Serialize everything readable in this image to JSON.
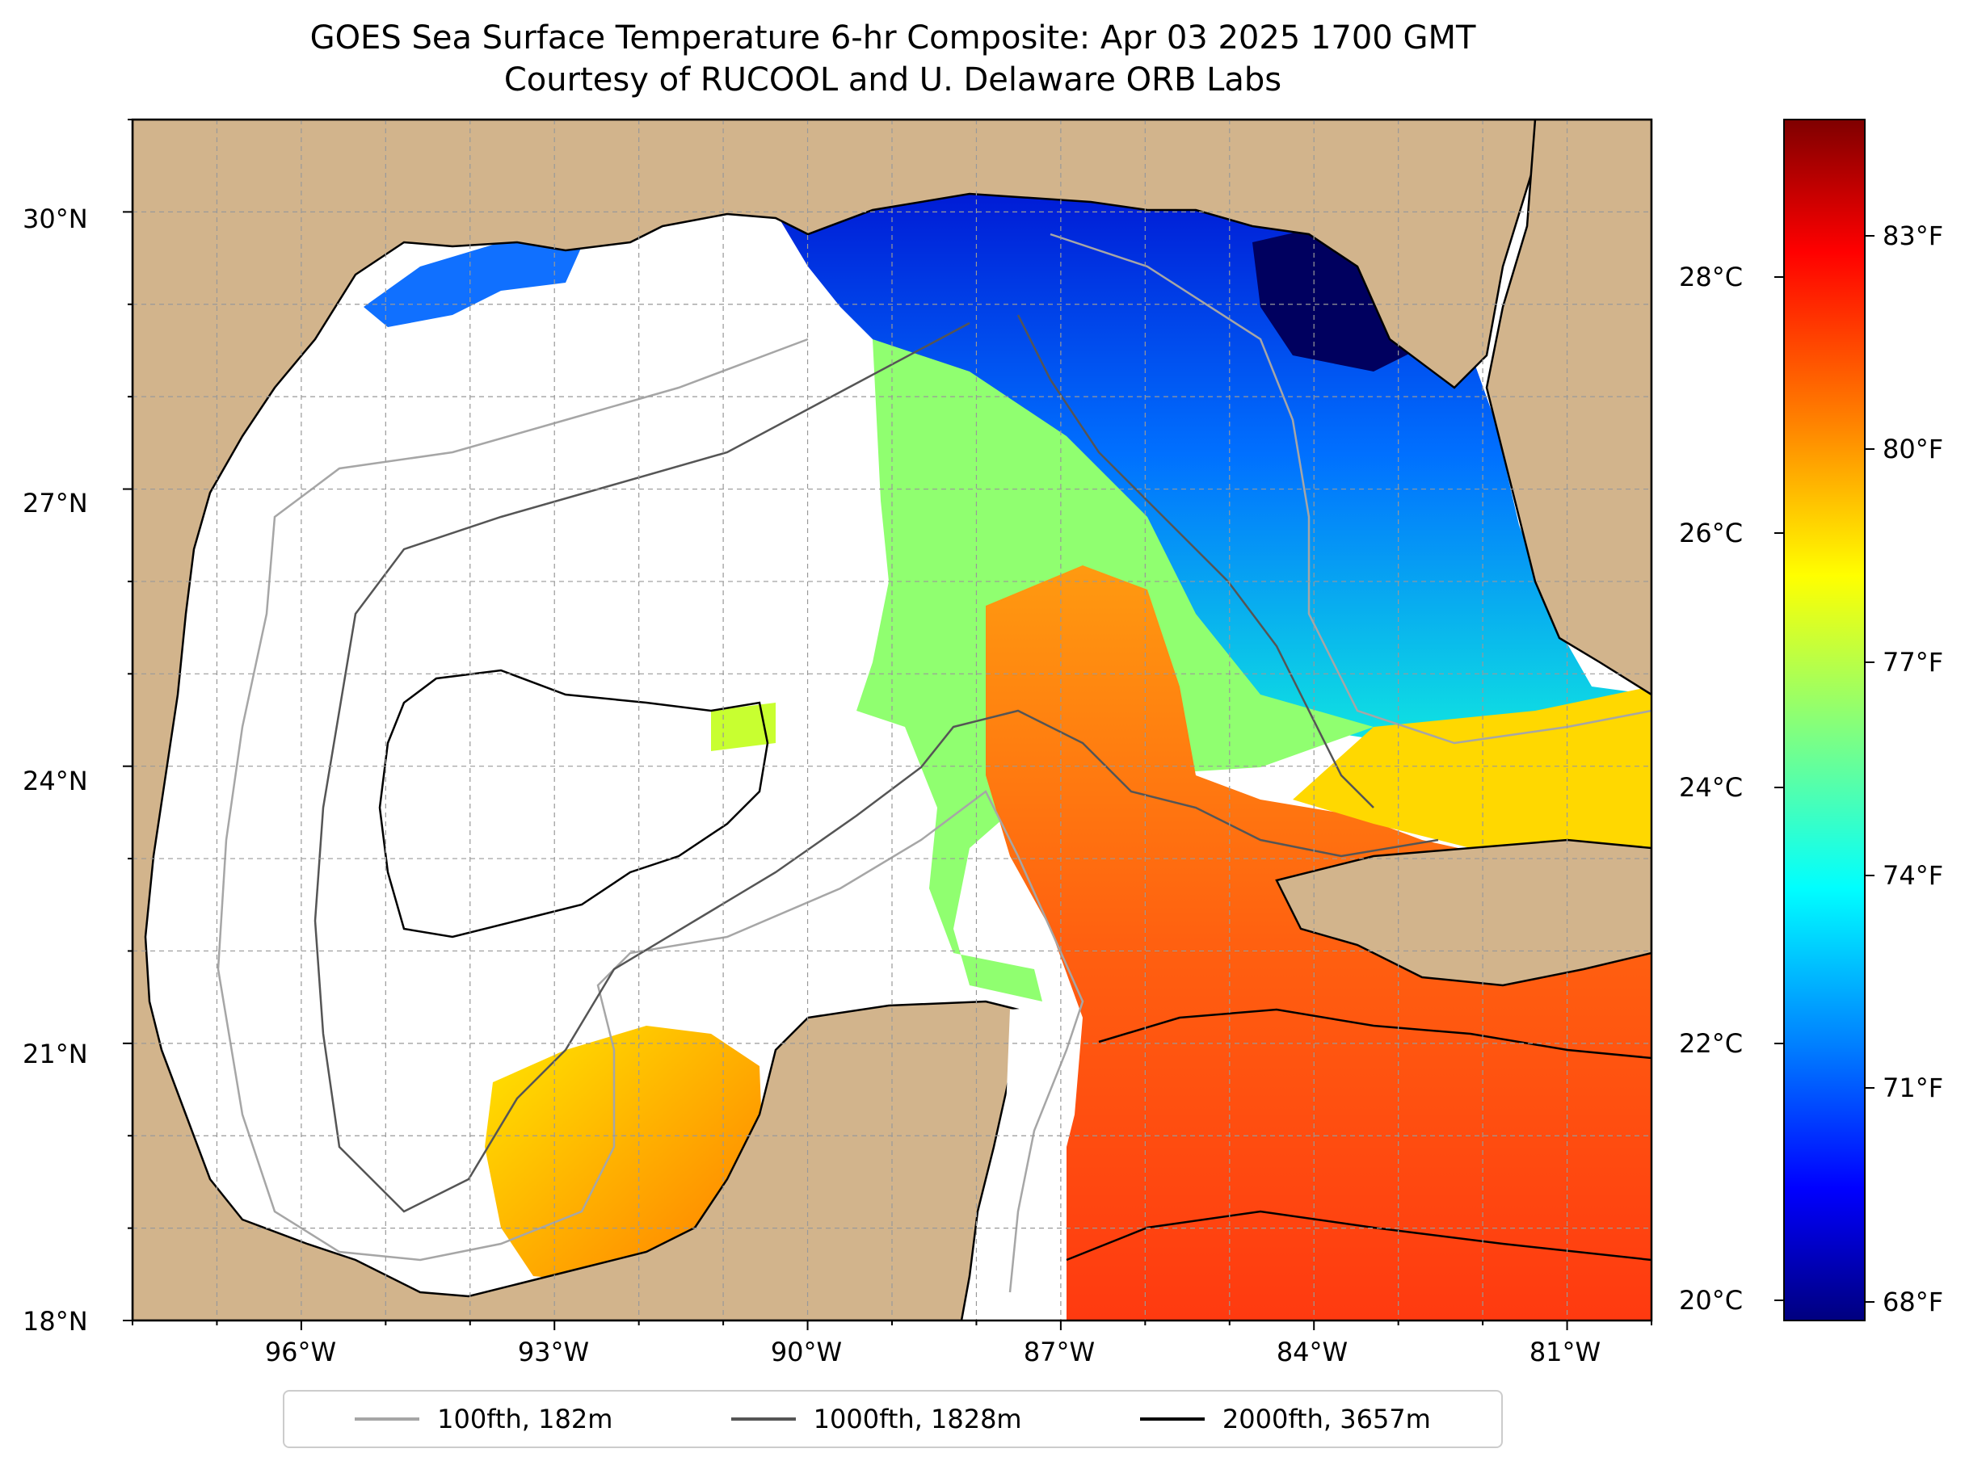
{
  "title": {
    "line1": "GOES Sea Surface Temperature 6-hr Composite: Apr 03 2025 1700 GMT",
    "line2": "Courtesy of RUCOOL and U. Delaware ORB Labs"
  },
  "map": {
    "lon_range": [
      -98,
      -80
    ],
    "lat_range": [
      18,
      31
    ],
    "y_ticks": [
      "30°N",
      "27°N",
      "24°N",
      "21°N",
      "18°N"
    ],
    "x_ticks": [
      "96°W",
      "93°W",
      "90°W",
      "87°W",
      "84°W",
      "81°W"
    ],
    "land_color": "#d2b48c",
    "ocean_no_data_color": "#ffffff"
  },
  "colorbar": {
    "celsius_ticks": [
      "28°C",
      "26°C",
      "24°C",
      "22°C",
      "20°C"
    ],
    "fahrenheit_ticks": [
      "83°F",
      "80°F",
      "77°F",
      "74°F",
      "71°F",
      "68°F"
    ],
    "colormap": "jet",
    "colors": [
      "#00007f",
      "#0000ff",
      "#0080ff",
      "#00ffff",
      "#80ff80",
      "#ffff00",
      "#ff8000",
      "#ff0000",
      "#7f0000"
    ]
  },
  "legend": [
    {
      "label": "100fth, 182m",
      "color": "#a6a6a6"
    },
    {
      "label": "1000fth, 1828m",
      "color": "#555555"
    },
    {
      "label": "2000fth, 3657m",
      "color": "#000000"
    }
  ]
}
